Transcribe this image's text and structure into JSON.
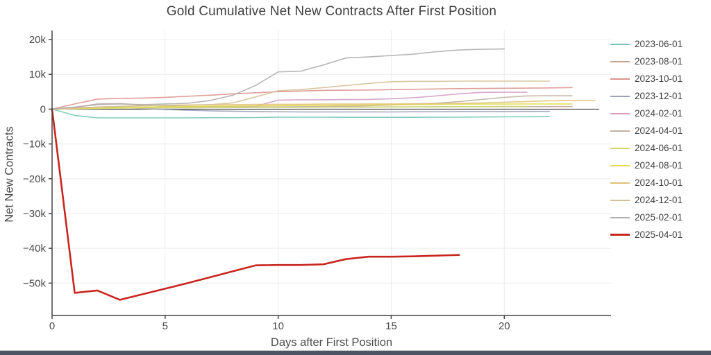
{
  "chart_data": {
    "type": "line",
    "title": "Gold Cumulative Net New Contracts After First Position",
    "xlabel": "Days after First Position",
    "ylabel": "Net New Contracts",
    "x_ticks": [
      0,
      5,
      10,
      15,
      20
    ],
    "y_ticks": [
      {
        "label": "20k",
        "value": 20000
      },
      {
        "label": "10k",
        "value": 10000
      },
      {
        "label": "0",
        "value": 0
      },
      {
        "label": "−10k",
        "value": -10000
      },
      {
        "label": "−20k",
        "value": -20000
      },
      {
        "label": "−30k",
        "value": -30000
      },
      {
        "label": "−40k",
        "value": -40000
      },
      {
        "label": "−50k",
        "value": -50000
      }
    ],
    "xlim": [
      0,
      24.72
    ],
    "ylim": [
      -59300,
      22600
    ],
    "grid": true,
    "legend_position": "right",
    "x_unit": "days",
    "zero_line": true,
    "axis_color": "#444444",
    "grid_color": "#ececec",
    "series": [
      {
        "name": "2023-06-01",
        "color": "#74c6b2",
        "width": 1.6,
        "values": [
          0,
          -1800,
          -2500,
          -2500,
          -2500,
          -2500,
          -2500,
          -2450,
          -2450,
          -2400,
          -2300,
          -2300,
          -2300,
          -2350,
          -2350,
          -2350,
          -2350,
          -2300,
          -2300,
          -2250,
          -2200,
          -2200,
          -2150
        ]
      },
      {
        "name": "2023-08-01",
        "color": "#c2a593",
        "width": 1.6,
        "values": [
          0,
          500,
          1500,
          1600,
          1200,
          900,
          800,
          700,
          700,
          600,
          600,
          600,
          600,
          600,
          600,
          650,
          650,
          700,
          700,
          700,
          700,
          700,
          750,
          750
        ]
      },
      {
        "name": "2023-10-01",
        "color": "#dd938d",
        "width": 1.6,
        "values": [
          0,
          1500,
          2900,
          3100,
          3200,
          3400,
          3700,
          4000,
          4400,
          4700,
          5000,
          5200,
          5400,
          5450,
          5500,
          5600,
          5700,
          5800,
          5900,
          5950,
          6000,
          6050,
          6100,
          6200
        ]
      },
      {
        "name": "2023-12-01",
        "color": "#9aa3ba",
        "width": 1.6,
        "values": [
          0,
          300,
          600,
          500,
          200,
          -100,
          -300,
          -500,
          -600,
          -700,
          -750,
          -800,
          -800,
          -800,
          -800,
          -800,
          -750,
          -750,
          -700,
          -700,
          -700,
          -650,
          -650
        ]
      },
      {
        "name": "2024-02-01",
        "color": "#d59bc5",
        "width": 1.6,
        "values": [
          0,
          200,
          300,
          350,
          400,
          400,
          450,
          500,
          600,
          800,
          2600,
          2700,
          2700,
          2750,
          2800,
          3000,
          3300,
          3800,
          4400,
          4800,
          4850,
          4850
        ]
      },
      {
        "name": "2024-04-01",
        "color": "#c2b3a3",
        "width": 1.6,
        "values": [
          0,
          200,
          300,
          400,
          450,
          500,
          500,
          550,
          600,
          600,
          650,
          700,
          750,
          850,
          1000,
          1200,
          1400,
          1700,
          2200,
          2800,
          3400,
          3800,
          3850,
          3850
        ]
      },
      {
        "name": "2024-06-01",
        "color": "#d0da72",
        "width": 1.6,
        "values": [
          0,
          100,
          200,
          300,
          350,
          400,
          400,
          450,
          450,
          500,
          500,
          500,
          550,
          550,
          600,
          600,
          650,
          650,
          700,
          750,
          800,
          800
        ]
      },
      {
        "name": "2024-08-01",
        "color": "#e2da52",
        "width": 1.6,
        "values": [
          0,
          200,
          400,
          500,
          600,
          700,
          800,
          850,
          900,
          950,
          1000,
          1050,
          1100,
          1150,
          1200,
          1250,
          1300,
          1350,
          1400,
          1450,
          1450,
          1500,
          1500,
          1500
        ]
      },
      {
        "name": "2024-10-01",
        "color": "#e0c178",
        "width": 1.6,
        "values": [
          0,
          300,
          600,
          800,
          1000,
          1100,
          1200,
          1250,
          1300,
          1350,
          1400,
          1400,
          1450,
          1450,
          1500,
          1500,
          1550,
          1600,
          1700,
          1800,
          2000,
          2200,
          2400,
          2500,
          2500
        ]
      },
      {
        "name": "2024-12-01",
        "color": "#d4c096",
        "width": 1.6,
        "values": [
          0,
          300,
          600,
          800,
          1000,
          1100,
          1200,
          1300,
          1800,
          3500,
          5300,
          5600,
          6200,
          6800,
          7400,
          7900,
          8000,
          8000,
          8050,
          8050,
          8050,
          8050,
          8050
        ]
      },
      {
        "name": "2025-02-01",
        "color": "#b3adad",
        "width": 1.6,
        "values": [
          0,
          600,
          1300,
          1500,
          1300,
          1500,
          1700,
          2500,
          4000,
          6800,
          10700,
          10900,
          12700,
          14700,
          15000,
          15400,
          15800,
          16500,
          17000,
          17200,
          17300
        ]
      },
      {
        "name": "2025-04-01",
        "color": "#c9251f",
        "width": 2.6,
        "values": [
          0,
          -52800,
          -52100,
          -54800,
          -53200,
          -51600,
          -50000,
          -48300,
          -46600,
          -44900,
          -44800,
          -44800,
          -44600,
          -43100,
          -42400,
          -42400,
          -42300,
          -42100,
          -41900
        ]
      }
    ]
  },
  "bottom_bar": {
    "color": "#4d5464"
  }
}
